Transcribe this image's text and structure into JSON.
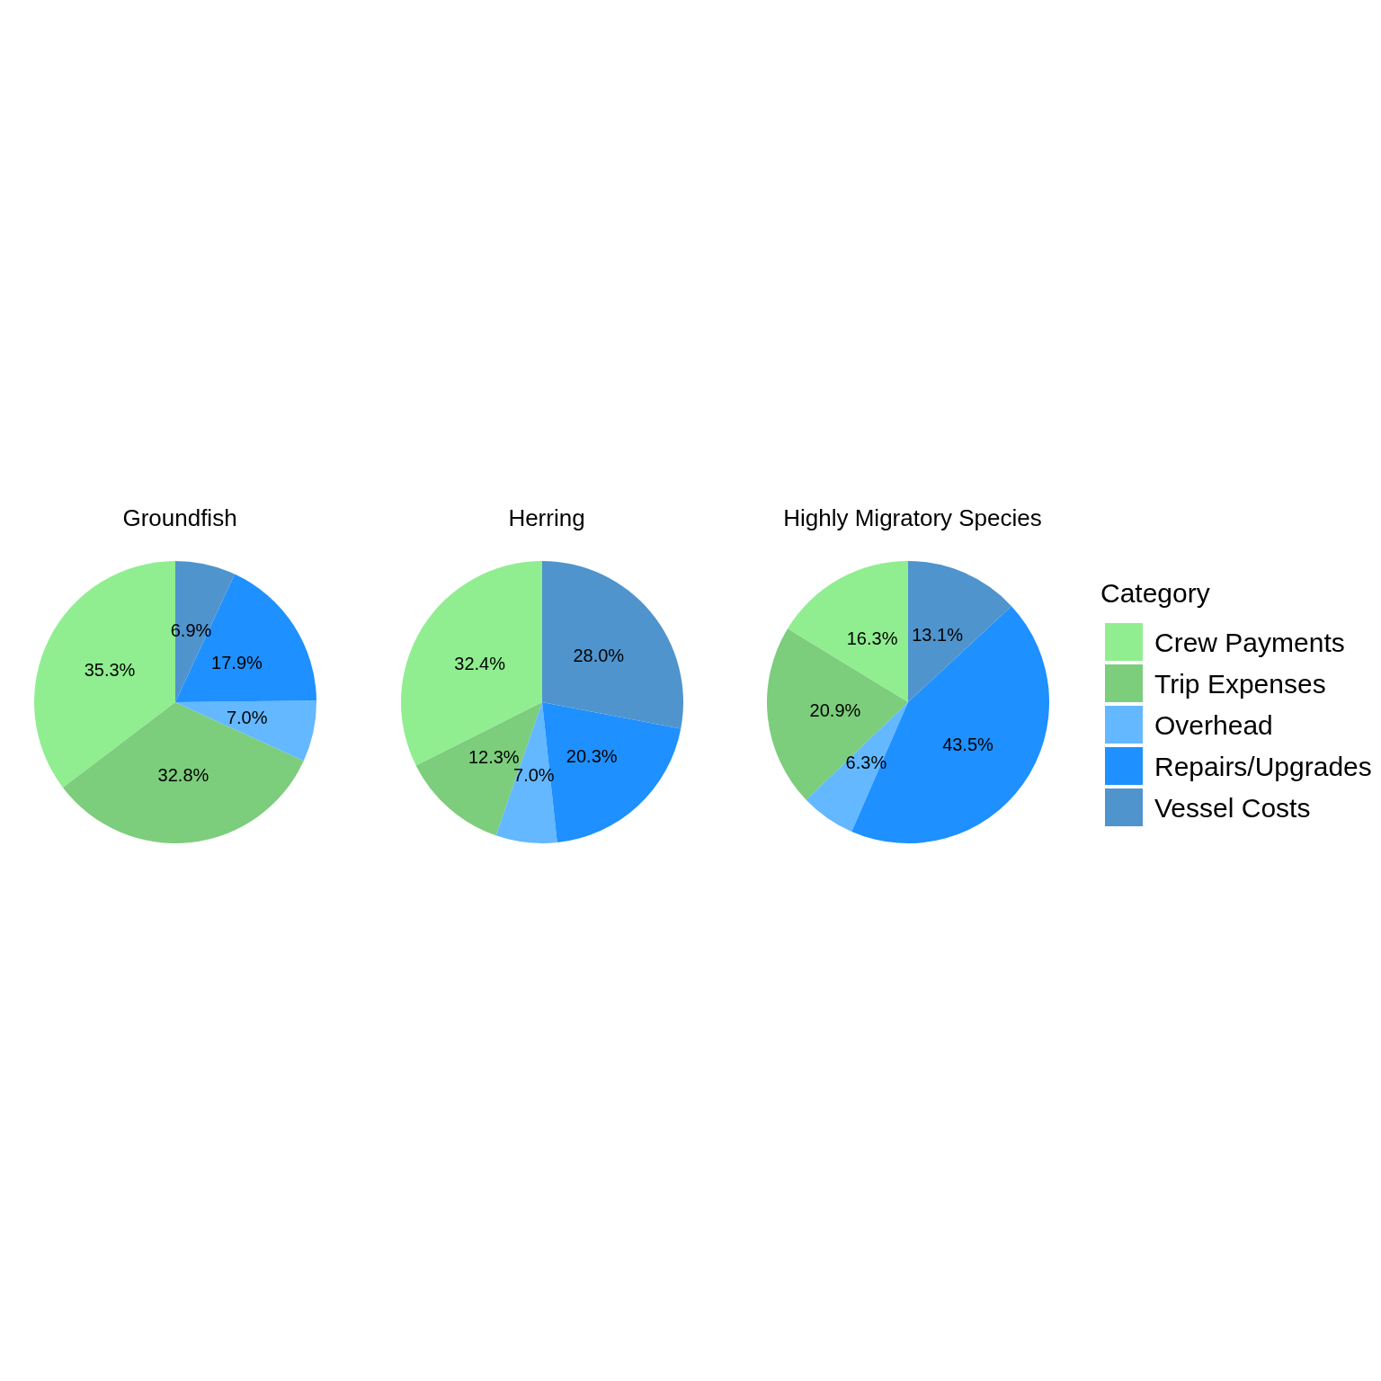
{
  "chart_data": [
    {
      "type": "pie",
      "title": "Groundfish",
      "categories": [
        null,
        null,
        null,
        null,
        null
      ],
      "values": [
        35.3,
        32.8,
        7.0,
        17.9,
        6.9
      ],
      "value_labels": [
        "35.3%",
        "32.8%",
        "7.0%",
        "17.9%",
        "6.9%"
      ],
      "colors": [
        "#90ee90",
        "#7ccd7c",
        "#63b8ff",
        "#1e90ff",
        "#4f94cd"
      ],
      "legend": false
    },
    {
      "type": "pie",
      "title": "Herring",
      "categories": [
        null,
        null,
        null,
        null,
        null
      ],
      "values": [
        32.4,
        12.3,
        7.0,
        20.3,
        28.0
      ],
      "value_labels": [
        "32.4%",
        "12.3%",
        "7.0%",
        "20.3%",
        "28.0%"
      ],
      "colors": [
        "#90ee90",
        "#7ccd7c",
        "#63b8ff",
        "#1e90ff",
        "#4f94cd"
      ],
      "legend": false
    },
    {
      "type": "pie",
      "title": "Highly Migratory Species",
      "categories": [
        "Crew Payments",
        "Trip Expenses",
        "Overhead",
        "Repairs/Upgrades",
        "Vessel Costs"
      ],
      "values": [
        16.3,
        20.9,
        6.3,
        43.5,
        13.1
      ],
      "value_labels": [
        "16.3%",
        "20.9%",
        "6.3%",
        "43.5%",
        "13.1%"
      ],
      "colors": [
        "#90ee90",
        "#7ccd7c",
        "#63b8ff",
        "#1e90ff",
        "#4f94cd"
      ],
      "legend": "right",
      "legend_title": "Category"
    }
  ]
}
